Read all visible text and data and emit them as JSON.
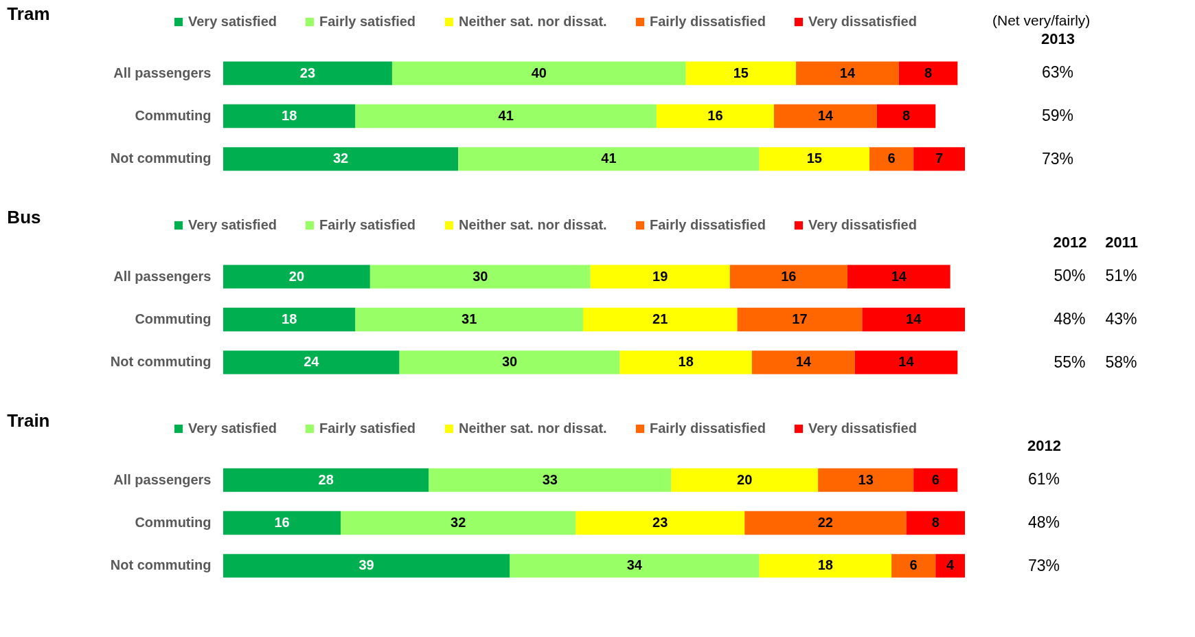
{
  "chart_data": [
    {
      "type": "bar",
      "orientation": "horizontal",
      "stacked": true,
      "title": "Tram",
      "legend": "top",
      "tick_labels": "y",
      "data_labels": true,
      "categories": [
        "All passengers",
        "Commuting",
        "Not commuting"
      ],
      "series": [
        {
          "name": "Very satisfied",
          "color": "#00b050",
          "values": [
            23,
            18,
            32
          ]
        },
        {
          "name": "Fairly satisfied",
          "color": "#99ff66",
          "values": [
            40,
            41,
            41
          ]
        },
        {
          "name": "Neither sat. nor dissat.",
          "color": "#ffff00",
          "values": [
            15,
            16,
            15
          ]
        },
        {
          "name": "Fairly dissatisfied",
          "color": "#ff6600",
          "values": [
            14,
            14,
            6
          ]
        },
        {
          "name": "Very dissatisfied",
          "color": "#ff0000",
          "values": [
            8,
            8,
            7
          ]
        }
      ],
      "annotations": [
        "(Net very/fairly)",
        "2013",
        "63%",
        "59%",
        "73%"
      ]
    },
    {
      "type": "bar",
      "orientation": "horizontal",
      "stacked": true,
      "title": "Bus",
      "legend": "top",
      "tick_labels": "y",
      "data_labels": true,
      "categories": [
        "All passengers",
        "Commuting",
        "Not commuting"
      ],
      "series": [
        {
          "name": "Very satisfied",
          "color": "#00b050",
          "values": [
            20,
            18,
            24
          ]
        },
        {
          "name": "Fairly satisfied",
          "color": "#99ff66",
          "values": [
            30,
            31,
            30
          ]
        },
        {
          "name": "Neither sat. nor dissat.",
          "color": "#ffff00",
          "values": [
            19,
            21,
            18
          ]
        },
        {
          "name": "Fairly dissatisfied",
          "color": "#ff6600",
          "values": [
            16,
            17,
            14
          ]
        },
        {
          "name": "Very dissatisfied",
          "color": "#ff0000",
          "values": [
            14,
            14,
            14
          ]
        }
      ],
      "annotations": [
        "2012",
        "2011",
        "50%",
        "51%",
        "48%",
        "43%",
        "55%",
        "58%"
      ]
    },
    {
      "type": "bar",
      "orientation": "horizontal",
      "stacked": true,
      "title": "Train",
      "legend": "top",
      "tick_labels": "y",
      "data_labels": true,
      "categories": [
        "All passengers",
        "Commuting",
        "Not commuting"
      ],
      "series": [
        {
          "name": "Very satisfied",
          "color": "#00b050",
          "values": [
            28,
            16,
            39
          ]
        },
        {
          "name": "Fairly satisfied",
          "color": "#99ff66",
          "values": [
            33,
            32,
            34
          ]
        },
        {
          "name": "Neither sat. nor dissat.",
          "color": "#ffff00",
          "values": [
            20,
            23,
            18
          ]
        },
        {
          "name": "Fairly dissatisfied",
          "color": "#ff6600",
          "values": [
            13,
            22,
            6
          ]
        },
        {
          "name": "Very dissatisfied",
          "color": "#ff0000",
          "values": [
            6,
            8,
            4
          ]
        }
      ],
      "annotations": [
        "2012",
        "61%",
        "48%",
        "73%"
      ]
    }
  ]
}
